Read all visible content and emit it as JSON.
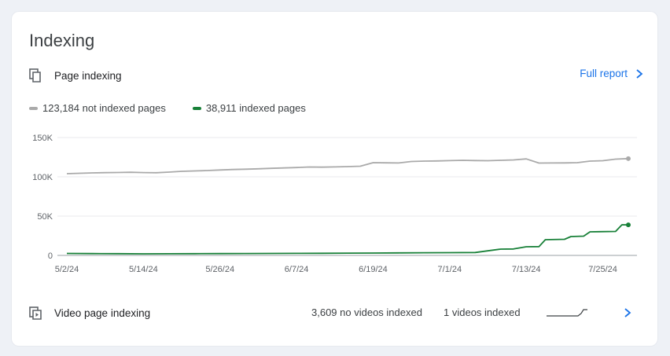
{
  "card": {
    "title": "Indexing",
    "page_indexing": {
      "label": "Page indexing",
      "icon": "copy-pages-icon",
      "full_report_label": "Full report",
      "chevron_icon": "chevron-right-icon"
    },
    "legend": [
      {
        "label": "123,184 not indexed pages",
        "color": "#aaaaaa"
      },
      {
        "label": "38,911 indexed pages",
        "color": "#188038"
      }
    ],
    "video": {
      "label": "Video page indexing",
      "icon": "video-frame-icon",
      "no_videos_indexed": "3,609 no videos indexed",
      "videos_indexed": "1 videos indexed",
      "chevron_icon": "chevron-right-icon"
    },
    "colors": {
      "accent": "#1a73e8",
      "indexed": "#188038",
      "not_indexed": "#aaaaaa"
    }
  },
  "chart_data": {
    "type": "line",
    "title": "",
    "xlabel": "",
    "ylabel": "",
    "y_ticks": [
      "150K",
      "100K",
      "50K",
      "0"
    ],
    "y_tick_values": [
      150000,
      100000,
      50000,
      0
    ],
    "ylim": [
      0,
      150000
    ],
    "x_ticks": [
      "5/2/24",
      "5/14/24",
      "5/26/24",
      "6/7/24",
      "6/19/24",
      "7/1/24",
      "7/13/24",
      "7/25/24"
    ],
    "x_tick_days": [
      0,
      12,
      24,
      36,
      48,
      60,
      72,
      84
    ],
    "grid": true,
    "series": [
      {
        "name": "not indexed pages",
        "color": "#aaaaaa",
        "points": [
          [
            0,
            104000
          ],
          [
            2,
            104500
          ],
          [
            4,
            105000
          ],
          [
            6,
            105300
          ],
          [
            8,
            105500
          ],
          [
            10,
            105800
          ],
          [
            12,
            105400
          ],
          [
            14,
            105200
          ],
          [
            16,
            106000
          ],
          [
            18,
            107000
          ],
          [
            20,
            107500
          ],
          [
            22,
            108000
          ],
          [
            24,
            108700
          ],
          [
            26,
            109300
          ],
          [
            28,
            109700
          ],
          [
            30,
            110200
          ],
          [
            32,
            110800
          ],
          [
            34,
            111300
          ],
          [
            36,
            111800
          ],
          [
            38,
            112500
          ],
          [
            40,
            112300
          ],
          [
            42,
            112600
          ],
          [
            44,
            113000
          ],
          [
            46,
            113500
          ],
          [
            48,
            118000
          ],
          [
            50,
            117800
          ],
          [
            52,
            117600
          ],
          [
            54,
            119500
          ],
          [
            56,
            120000
          ],
          [
            58,
            120200
          ],
          [
            60,
            120600
          ],
          [
            62,
            121000
          ],
          [
            64,
            120700
          ],
          [
            66,
            120500
          ],
          [
            68,
            121000
          ],
          [
            70,
            121500
          ],
          [
            72,
            122800
          ],
          [
            74,
            117500
          ],
          [
            76,
            117600
          ],
          [
            78,
            117700
          ],
          [
            80,
            118000
          ],
          [
            82,
            120000
          ],
          [
            84,
            120500
          ],
          [
            86,
            122500
          ],
          [
            88,
            123184
          ]
        ]
      },
      {
        "name": "indexed pages",
        "color": "#188038",
        "points": [
          [
            0,
            2500
          ],
          [
            4,
            2300
          ],
          [
            8,
            2200
          ],
          [
            12,
            2000
          ],
          [
            16,
            2100
          ],
          [
            20,
            2200
          ],
          [
            24,
            2300
          ],
          [
            28,
            2400
          ],
          [
            32,
            2500
          ],
          [
            36,
            2600
          ],
          [
            40,
            2700
          ],
          [
            44,
            2900
          ],
          [
            48,
            3000
          ],
          [
            52,
            3200
          ],
          [
            56,
            3400
          ],
          [
            60,
            3500
          ],
          [
            64,
            3700
          ],
          [
            68,
            8000
          ],
          [
            70,
            8200
          ],
          [
            72,
            11000
          ],
          [
            74,
            11200
          ],
          [
            75,
            20000
          ],
          [
            78,
            20500
          ],
          [
            79,
            24000
          ],
          [
            81,
            24500
          ],
          [
            82,
            30000
          ],
          [
            86,
            30500
          ],
          [
            87,
            39000
          ],
          [
            88,
            38911
          ]
        ]
      }
    ]
  },
  "video_spark": {
    "points": [
      [
        0,
        0
      ],
      [
        10,
        0
      ],
      [
        20,
        0
      ],
      [
        30,
        0
      ],
      [
        40,
        0
      ],
      [
        44,
        0.4
      ],
      [
        47,
        1
      ],
      [
        52,
        1
      ]
    ]
  }
}
